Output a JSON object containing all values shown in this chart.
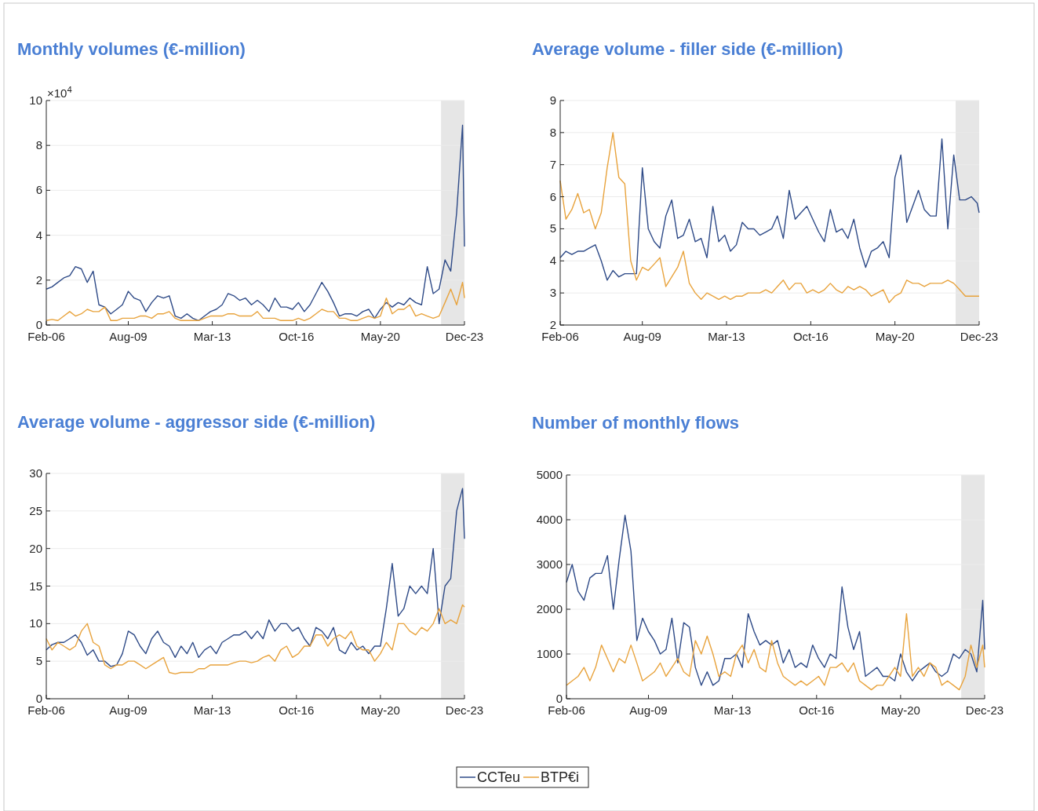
{
  "chart_data": [
    {
      "type": "line",
      "title": "Monthly volumes (€-million)",
      "annotations": [
        "×10$^{4}$"
      ],
      "x": [
        "2006-02",
        "2006-05",
        "2006-08",
        "2006-11",
        "2007-02",
        "2007-05",
        "2007-08",
        "2007-11",
        "2008-02",
        "2008-05",
        "2008-08",
        "2008-11",
        "2009-02",
        "2009-05",
        "2009-08",
        "2009-11",
        "2010-02",
        "2010-05",
        "2010-08",
        "2010-11",
        "2011-02",
        "2011-05",
        "2011-08",
        "2011-11",
        "2012-02",
        "2012-05",
        "2012-08",
        "2012-11",
        "2013-02",
        "2013-05",
        "2013-08",
        "2013-11",
        "2014-02",
        "2014-05",
        "2014-08",
        "2014-11",
        "2015-02",
        "2015-05",
        "2015-08",
        "2015-11",
        "2016-02",
        "2016-05",
        "2016-08",
        "2016-11",
        "2017-02",
        "2017-05",
        "2017-08",
        "2017-11",
        "2018-02",
        "2018-05",
        "2018-08",
        "2018-11",
        "2019-02",
        "2019-05",
        "2019-08",
        "2019-11",
        "2020-02",
        "2020-05",
        "2020-08",
        "2020-11",
        "2021-02",
        "2021-05",
        "2021-08",
        "2021-11",
        "2022-02",
        "2022-05",
        "2022-08",
        "2022-11",
        "2023-02",
        "2023-05",
        "2023-08",
        "2023-11",
        "2023-12"
      ],
      "series": [
        {
          "name": "CCTeu",
          "color": "#2e4a87",
          "values": [
            1.6,
            1.7,
            1.9,
            2.1,
            2.2,
            2.6,
            2.5,
            1.9,
            2.4,
            0.9,
            0.8,
            0.5,
            0.7,
            0.9,
            1.5,
            1.2,
            1.1,
            0.6,
            1.0,
            1.3,
            1.2,
            1.3,
            0.4,
            0.3,
            0.5,
            0.3,
            0.2,
            0.4,
            0.6,
            0.7,
            0.9,
            1.4,
            1.3,
            1.1,
            1.2,
            0.9,
            1.1,
            0.9,
            0.6,
            1.2,
            0.8,
            0.8,
            0.7,
            1.0,
            0.6,
            0.9,
            1.4,
            1.9,
            1.5,
            1.0,
            0.4,
            0.5,
            0.5,
            0.4,
            0.6,
            0.7,
            0.3,
            0.7,
            1.0,
            0.8,
            1.0,
            0.9,
            1.2,
            1.0,
            0.9,
            2.6,
            1.4,
            1.6,
            2.9,
            2.4,
            5.0,
            8.9,
            3.5
          ]
        },
        {
          "name": "BTP€i",
          "color": "#e8a33d",
          "values": [
            0.2,
            0.25,
            0.2,
            0.4,
            0.6,
            0.4,
            0.5,
            0.7,
            0.6,
            0.6,
            0.8,
            0.2,
            0.2,
            0.3,
            0.3,
            0.3,
            0.4,
            0.4,
            0.3,
            0.5,
            0.5,
            0.6,
            0.3,
            0.2,
            0.2,
            0.2,
            0.2,
            0.3,
            0.4,
            0.4,
            0.4,
            0.5,
            0.5,
            0.4,
            0.4,
            0.4,
            0.6,
            0.3,
            0.3,
            0.3,
            0.2,
            0.2,
            0.2,
            0.3,
            0.2,
            0.3,
            0.5,
            0.7,
            0.6,
            0.6,
            0.3,
            0.3,
            0.2,
            0.2,
            0.3,
            0.4,
            0.3,
            0.4,
            1.2,
            0.5,
            0.7,
            0.7,
            0.9,
            0.4,
            0.5,
            0.4,
            0.3,
            0.4,
            1.0,
            1.6,
            0.9,
            1.9,
            1.2
          ]
        }
      ],
      "xlim": [
        "2006-02",
        "2023-12"
      ],
      "xticks": [
        {
          "value": "2006-02",
          "label": "Feb-06"
        },
        {
          "value": "2009-08",
          "label": "Aug-09"
        },
        {
          "value": "2013-03",
          "label": "Mar-13"
        },
        {
          "value": "2016-10",
          "label": "Oct-16"
        },
        {
          "value": "2020-05",
          "label": "May-20"
        },
        {
          "value": "2023-12",
          "label": "Dec-23"
        }
      ],
      "ylim": [
        0,
        10
      ],
      "yticks": [
        0,
        2,
        4,
        6,
        8,
        10
      ],
      "bands": [
        {
          "axis": "x",
          "from": "2022-12",
          "to": "2023-12",
          "color": "#e6e6e6"
        }
      ],
      "grid": "y",
      "legend": "bottom"
    },
    {
      "type": "line",
      "title": "Average volume - filler side (€-million)",
      "x": [
        "2006-02",
        "2006-05",
        "2006-08",
        "2006-11",
        "2007-02",
        "2007-05",
        "2007-08",
        "2007-11",
        "2008-02",
        "2008-05",
        "2008-08",
        "2008-11",
        "2009-02",
        "2009-05",
        "2009-08",
        "2009-11",
        "2010-02",
        "2010-05",
        "2010-08",
        "2010-11",
        "2011-02",
        "2011-05",
        "2011-08",
        "2011-11",
        "2012-02",
        "2012-05",
        "2012-08",
        "2012-11",
        "2013-02",
        "2013-05",
        "2013-08",
        "2013-11",
        "2014-02",
        "2014-05",
        "2014-08",
        "2014-11",
        "2015-02",
        "2015-05",
        "2015-08",
        "2015-11",
        "2016-02",
        "2016-05",
        "2016-08",
        "2016-11",
        "2017-02",
        "2017-05",
        "2017-08",
        "2017-11",
        "2018-02",
        "2018-05",
        "2018-08",
        "2018-11",
        "2019-02",
        "2019-05",
        "2019-08",
        "2019-11",
        "2020-02",
        "2020-05",
        "2020-08",
        "2020-11",
        "2021-02",
        "2021-05",
        "2021-08",
        "2021-11",
        "2022-02",
        "2022-05",
        "2022-08",
        "2022-11",
        "2023-02",
        "2023-05",
        "2023-08",
        "2023-11",
        "2023-12"
      ],
      "series": [
        {
          "name": "CCTeu",
          "color": "#2e4a87",
          "values": [
            4.1,
            4.3,
            4.2,
            4.3,
            4.3,
            4.4,
            4.5,
            4.0,
            3.4,
            3.7,
            3.5,
            3.6,
            3.6,
            3.6,
            6.9,
            5.0,
            4.6,
            4.4,
            5.4,
            5.9,
            4.7,
            4.8,
            5.3,
            4.6,
            4.7,
            4.1,
            5.7,
            4.6,
            4.8,
            4.3,
            4.5,
            5.2,
            5.0,
            5.0,
            4.8,
            4.9,
            5.0,
            5.4,
            4.7,
            6.2,
            5.3,
            5.5,
            5.7,
            5.3,
            4.9,
            4.6,
            5.6,
            4.9,
            5.0,
            4.7,
            5.3,
            4.4,
            3.8,
            4.3,
            4.4,
            4.6,
            4.1,
            6.6,
            7.3,
            5.2,
            5.7,
            6.2,
            5.6,
            5.4,
            5.4,
            7.8,
            5.0,
            7.3,
            5.9,
            5.9,
            6.0,
            5.8,
            5.5
          ]
        },
        {
          "name": "BTP€i",
          "color": "#e8a33d",
          "values": [
            6.5,
            5.3,
            5.6,
            6.1,
            5.5,
            5.6,
            5.0,
            5.5,
            6.9,
            8.0,
            6.6,
            6.4,
            4.0,
            3.4,
            3.8,
            3.7,
            3.9,
            4.1,
            3.2,
            3.5,
            3.8,
            4.3,
            3.3,
            3.0,
            2.8,
            3.0,
            2.9,
            2.8,
            2.9,
            2.8,
            2.9,
            2.9,
            3.0,
            3.0,
            3.0,
            3.1,
            3.0,
            3.2,
            3.4,
            3.1,
            3.3,
            3.3,
            3.0,
            3.1,
            3.0,
            3.1,
            3.3,
            3.1,
            3.0,
            3.2,
            3.1,
            3.2,
            3.1,
            2.9,
            3.0,
            3.1,
            2.7,
            2.9,
            3.0,
            3.4,
            3.3,
            3.3,
            3.2,
            3.3,
            3.3,
            3.3,
            3.4,
            3.3,
            3.1,
            2.9,
            2.9,
            2.9,
            2.9
          ]
        }
      ],
      "xlim": [
        "2006-02",
        "2023-12"
      ],
      "xticks": [
        {
          "value": "2006-02",
          "label": "Feb-06"
        },
        {
          "value": "2009-08",
          "label": "Aug-09"
        },
        {
          "value": "2013-03",
          "label": "Mar-13"
        },
        {
          "value": "2016-10",
          "label": "Oct-16"
        },
        {
          "value": "2020-05",
          "label": "May-20"
        },
        {
          "value": "2023-12",
          "label": "Dec-23"
        }
      ],
      "ylim": [
        2,
        9
      ],
      "yticks": [
        2,
        3,
        4,
        5,
        6,
        7,
        8,
        9
      ],
      "bands": [
        {
          "axis": "x",
          "from": "2022-12",
          "to": "2023-12",
          "color": "#e6e6e6"
        }
      ],
      "grid": "y"
    },
    {
      "type": "line",
      "title": "Average volume - aggressor side (€-million)",
      "x": [
        "2006-02",
        "2006-05",
        "2006-08",
        "2006-11",
        "2007-02",
        "2007-05",
        "2007-08",
        "2007-11",
        "2008-02",
        "2008-05",
        "2008-08",
        "2008-11",
        "2009-02",
        "2009-05",
        "2009-08",
        "2009-11",
        "2010-02",
        "2010-05",
        "2010-08",
        "2010-11",
        "2011-02",
        "2011-05",
        "2011-08",
        "2011-11",
        "2012-02",
        "2012-05",
        "2012-08",
        "2012-11",
        "2013-02",
        "2013-05",
        "2013-08",
        "2013-11",
        "2014-02",
        "2014-05",
        "2014-08",
        "2014-11",
        "2015-02",
        "2015-05",
        "2015-08",
        "2015-11",
        "2016-02",
        "2016-05",
        "2016-08",
        "2016-11",
        "2017-02",
        "2017-05",
        "2017-08",
        "2017-11",
        "2018-02",
        "2018-05",
        "2018-08",
        "2018-11",
        "2019-02",
        "2019-05",
        "2019-08",
        "2019-11",
        "2020-02",
        "2020-05",
        "2020-08",
        "2020-11",
        "2021-02",
        "2021-05",
        "2021-08",
        "2021-11",
        "2022-02",
        "2022-05",
        "2022-08",
        "2022-11",
        "2023-02",
        "2023-05",
        "2023-08",
        "2023-11",
        "2023-12"
      ],
      "series": [
        {
          "name": "CCTeu",
          "color": "#2e4a87",
          "values": [
            6.5,
            7.2,
            7.5,
            7.5,
            8.0,
            8.5,
            7.5,
            5.8,
            6.5,
            5.0,
            5.0,
            4.3,
            4.5,
            6.0,
            9.0,
            8.5,
            7.0,
            6.0,
            8.0,
            9.0,
            7.5,
            7.0,
            5.5,
            7.0,
            6.0,
            7.5,
            5.5,
            6.5,
            7.0,
            6.0,
            7.5,
            8.0,
            8.5,
            8.5,
            9.0,
            8.0,
            9.0,
            8.0,
            10.5,
            9.0,
            10.0,
            10.0,
            9.0,
            9.5,
            8.0,
            7.0,
            9.5,
            9.0,
            8.0,
            9.5,
            6.5,
            6.0,
            7.5,
            6.5,
            7.0,
            6.0,
            7.0,
            7.0,
            12.0,
            18.0,
            11.0,
            12.0,
            15.0,
            14.0,
            15.0,
            14.0,
            20.0,
            10.0,
            15.0,
            16.0,
            25.0,
            28.0,
            21.3
          ]
        },
        {
          "name": "BTP€i",
          "color": "#e8a33d",
          "values": [
            8.0,
            6.5,
            7.5,
            7.0,
            6.5,
            7.0,
            9.0,
            10.0,
            7.5,
            7.0,
            4.5,
            4.0,
            4.5,
            4.5,
            5.0,
            5.0,
            4.5,
            4.0,
            4.5,
            5.0,
            5.5,
            3.5,
            3.3,
            3.5,
            3.5,
            3.5,
            4.0,
            4.0,
            4.5,
            4.5,
            4.5,
            4.5,
            4.8,
            5.0,
            5.0,
            4.8,
            5.0,
            5.5,
            5.8,
            5.0,
            6.5,
            7.0,
            5.5,
            6.0,
            7.0,
            7.0,
            8.5,
            8.5,
            7.0,
            8.0,
            8.5,
            8.0,
            9.0,
            7.0,
            6.5,
            6.5,
            5.0,
            6.0,
            7.5,
            6.5,
            10.0,
            10.0,
            9.0,
            8.5,
            9.5,
            9.0,
            10.0,
            12.0,
            10.0,
            10.5,
            10.0,
            12.5,
            12.2
          ]
        }
      ],
      "xlim": [
        "2006-02",
        "2023-12"
      ],
      "xticks": [
        {
          "value": "2006-02",
          "label": "Feb-06"
        },
        {
          "value": "2009-08",
          "label": "Aug-09"
        },
        {
          "value": "2013-03",
          "label": "Mar-13"
        },
        {
          "value": "2016-10",
          "label": "Oct-16"
        },
        {
          "value": "2020-05",
          "label": "May-20"
        },
        {
          "value": "2023-12",
          "label": "Dec-23"
        }
      ],
      "ylim": [
        0,
        30
      ],
      "yticks": [
        0,
        5,
        10,
        15,
        20,
        25,
        30
      ],
      "bands": [
        {
          "axis": "x",
          "from": "2022-12",
          "to": "2023-12",
          "color": "#e6e6e6"
        }
      ],
      "grid": "y"
    },
    {
      "type": "line",
      "title": "Number of monthly flows",
      "x": [
        "2006-02",
        "2006-05",
        "2006-08",
        "2006-11",
        "2007-02",
        "2007-05",
        "2007-08",
        "2007-11",
        "2008-02",
        "2008-05",
        "2008-08",
        "2008-11",
        "2009-02",
        "2009-05",
        "2009-08",
        "2009-11",
        "2010-02",
        "2010-05",
        "2010-08",
        "2010-11",
        "2011-02",
        "2011-05",
        "2011-08",
        "2011-11",
        "2012-02",
        "2012-05",
        "2012-08",
        "2012-11",
        "2013-02",
        "2013-05",
        "2013-08",
        "2013-11",
        "2014-02",
        "2014-05",
        "2014-08",
        "2014-11",
        "2015-02",
        "2015-05",
        "2015-08",
        "2015-11",
        "2016-02",
        "2016-05",
        "2016-08",
        "2016-11",
        "2017-02",
        "2017-05",
        "2017-08",
        "2017-11",
        "2018-02",
        "2018-05",
        "2018-08",
        "2018-11",
        "2019-02",
        "2019-05",
        "2019-08",
        "2019-11",
        "2020-02",
        "2020-05",
        "2020-08",
        "2020-11",
        "2021-02",
        "2021-05",
        "2021-08",
        "2021-11",
        "2022-02",
        "2022-05",
        "2022-08",
        "2022-11",
        "2023-02",
        "2023-05",
        "2023-08",
        "2023-11",
        "2023-12"
      ],
      "series": [
        {
          "name": "CCTeu",
          "color": "#2e4a87",
          "values": [
            2600,
            3000,
            2400,
            2200,
            2700,
            2800,
            2800,
            3200,
            2000,
            3100,
            4100,
            3300,
            1300,
            1800,
            1500,
            1300,
            1000,
            1100,
            1800,
            800,
            1700,
            1600,
            700,
            300,
            600,
            300,
            400,
            900,
            900,
            1000,
            700,
            1900,
            1500,
            1200,
            1300,
            1200,
            1300,
            800,
            1100,
            700,
            800,
            700,
            1200,
            900,
            700,
            1000,
            900,
            2500,
            1600,
            1100,
            1500,
            500,
            600,
            700,
            500,
            500,
            400,
            1000,
            600,
            400,
            600,
            700,
            800,
            600,
            500,
            600,
            1000,
            900,
            1100,
            1000,
            600,
            2200,
            1100
          ]
        },
        {
          "name": "BTP€i",
          "color": "#e8a33d",
          "values": [
            300,
            400,
            500,
            700,
            400,
            700,
            1200,
            900,
            600,
            900,
            800,
            1200,
            800,
            400,
            500,
            600,
            800,
            500,
            700,
            900,
            600,
            500,
            1300,
            1000,
            1400,
            1000,
            500,
            600,
            500,
            1000,
            1200,
            800,
            1100,
            700,
            600,
            1300,
            800,
            500,
            400,
            300,
            400,
            300,
            400,
            500,
            300,
            700,
            700,
            800,
            600,
            800,
            400,
            300,
            200,
            300,
            300,
            500,
            700,
            500,
            1900,
            500,
            700,
            500,
            800,
            700,
            300,
            400,
            300,
            200,
            500,
            1200,
            700,
            1200,
            700
          ]
        }
      ],
      "xlim": [
        "2006-02",
        "2023-12"
      ],
      "xticks": [
        {
          "value": "2006-02",
          "label": "Feb-06"
        },
        {
          "value": "2009-08",
          "label": "Aug-09"
        },
        {
          "value": "2013-03",
          "label": "Mar-13"
        },
        {
          "value": "2016-10",
          "label": "Oct-16"
        },
        {
          "value": "2020-05",
          "label": "May-20"
        },
        {
          "value": "2023-12",
          "label": "Dec-23"
        }
      ],
      "ylim": [
        0,
        5000
      ],
      "yticks": [
        0,
        1000,
        2000,
        3000,
        4000,
        5000
      ],
      "bands": [
        {
          "axis": "x",
          "from": "2022-12",
          "to": "2023-12",
          "color": "#e6e6e6"
        }
      ],
      "grid": "y"
    }
  ]
}
